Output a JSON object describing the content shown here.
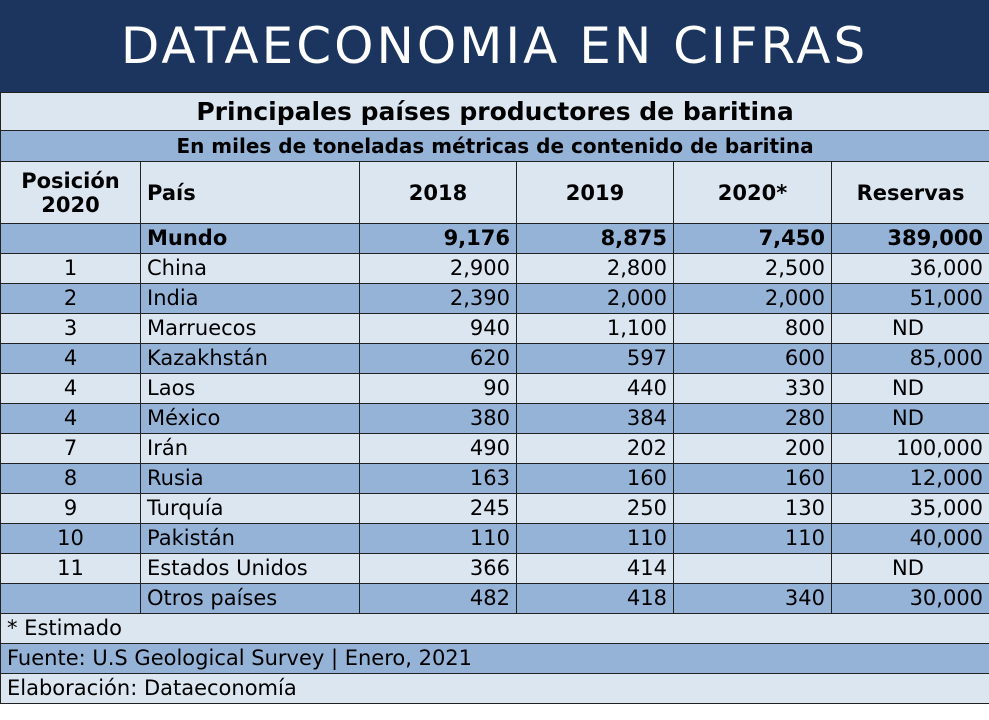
{
  "banner": "DATAECONOMIA EN CIFRAS",
  "chart_data": {
    "type": "table",
    "title": "Principales países productores de baritina",
    "subtitle": "En miles de toneladas métricas de contenido de baritina",
    "columns": [
      "Posición 2020",
      "País",
      "2018",
      "2019",
      "2020*",
      "Reservas"
    ],
    "rows": [
      [
        "",
        "Mundo",
        "9,176",
        "8,875",
        "7,450",
        "389,000"
      ],
      [
        "1",
        "China",
        "2,900",
        "2,800",
        "2,500",
        "36,000"
      ],
      [
        "2",
        "India",
        "2,390",
        "2,000",
        "2,000",
        "51,000"
      ],
      [
        "3",
        "Marruecos",
        "940",
        "1,100",
        "800",
        "ND"
      ],
      [
        "4",
        "Kazakhstán",
        "620",
        "597",
        "600",
        "85,000"
      ],
      [
        "4",
        "Laos",
        "90",
        "440",
        "330",
        "ND"
      ],
      [
        "4",
        "México",
        "380",
        "384",
        "280",
        "ND"
      ],
      [
        "7",
        "Irán",
        "490",
        "202",
        "200",
        "100,000"
      ],
      [
        "8",
        "Rusia",
        "163",
        "160",
        "160",
        "12,000"
      ],
      [
        "9",
        "Turquía",
        "245",
        "250",
        "130",
        "35,000"
      ],
      [
        "10",
        "Pakistán",
        "110",
        "110",
        "110",
        "40,000"
      ],
      [
        "11",
        "Estados Unidos",
        "366",
        "414",
        "",
        "ND"
      ],
      [
        "",
        "Otros países",
        "482",
        "418",
        "340",
        "30,000"
      ]
    ]
  },
  "footer": {
    "note": "* Estimado",
    "source": "Fuente: U.S Geological Survey | Enero, 2021",
    "credit": "Elaboración: Dataeconomía"
  }
}
